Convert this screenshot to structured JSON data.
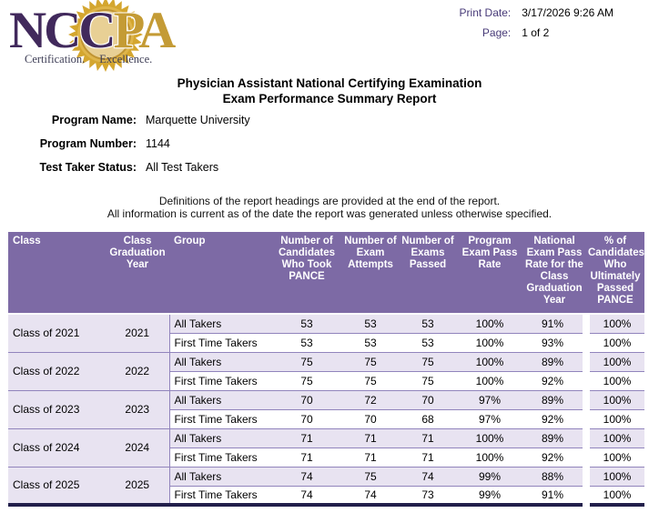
{
  "logo": {
    "ncc": "NCC",
    "pa": "PA",
    "certification": "Certification.",
    "excellence": "Excellence.",
    "purple": "#41295c",
    "gold": "#c49b35"
  },
  "print_info": {
    "print_date_label": "Print Date:",
    "print_date_value": "3/17/2026 9:26 AM",
    "page_label": "Page:",
    "page_value": "1 of 2"
  },
  "title": {
    "line1": "Physician Assistant National Certifying Examination",
    "line2": "Exam Performance Summary Report"
  },
  "program_info": {
    "name_label": "Program Name:",
    "name_value": "Marquette University",
    "number_label": "Program Number:",
    "number_value": "1144",
    "status_label": "Test Taker Status:",
    "status_value": "All Test Takers"
  },
  "notes": {
    "line1": "Definitions of the report headings are provided at the end of the report.",
    "line2": "All information is current as of the date the report was generated unless otherwise specified."
  },
  "table": {
    "columns": [
      "Class",
      "Class Graduation Year",
      "Group",
      "Number of Candidates Who Took PANCE",
      "Number of Exam Attempts",
      "Number of Exams Passed",
      "Program Exam Pass Rate",
      "National Exam Pass Rate for the Class Graduation Year",
      "% of Candidates Who Ultimately Passed PANCE"
    ],
    "groups": [
      {
        "class": "Class of 2021",
        "year": "2021",
        "rows": [
          {
            "group": "All Takers",
            "candidates": "53",
            "attempts": "53",
            "passed": "53",
            "program_rate": "100%",
            "national_rate": "91%",
            "ultimate_rate": "100%"
          },
          {
            "group": "First Time Takers",
            "candidates": "53",
            "attempts": "53",
            "passed": "53",
            "program_rate": "100%",
            "national_rate": "93%",
            "ultimate_rate": "100%"
          }
        ]
      },
      {
        "class": "Class of 2022",
        "year": "2022",
        "rows": [
          {
            "group": "All Takers",
            "candidates": "75",
            "attempts": "75",
            "passed": "75",
            "program_rate": "100%",
            "national_rate": "89%",
            "ultimate_rate": "100%"
          },
          {
            "group": "First Time Takers",
            "candidates": "75",
            "attempts": "75",
            "passed": "75",
            "program_rate": "100%",
            "national_rate": "92%",
            "ultimate_rate": "100%"
          }
        ]
      },
      {
        "class": "Class of 2023",
        "year": "2023",
        "rows": [
          {
            "group": "All Takers",
            "candidates": "70",
            "attempts": "72",
            "passed": "70",
            "program_rate": "97%",
            "national_rate": "89%",
            "ultimate_rate": "100%"
          },
          {
            "group": "First Time Takers",
            "candidates": "70",
            "attempts": "70",
            "passed": "68",
            "program_rate": "97%",
            "national_rate": "92%",
            "ultimate_rate": "100%"
          }
        ]
      },
      {
        "class": "Class of 2024",
        "year": "2024",
        "rows": [
          {
            "group": "All Takers",
            "candidates": "71",
            "attempts": "71",
            "passed": "71",
            "program_rate": "100%",
            "national_rate": "89%",
            "ultimate_rate": "100%"
          },
          {
            "group": "First Time Takers",
            "candidates": "71",
            "attempts": "71",
            "passed": "71",
            "program_rate": "100%",
            "national_rate": "92%",
            "ultimate_rate": "100%"
          }
        ]
      },
      {
        "class": "Class of 2025",
        "year": "2025",
        "rows": [
          {
            "group": "All Takers",
            "candidates": "74",
            "attempts": "75",
            "passed": "74",
            "program_rate": "99%",
            "national_rate": "88%",
            "ultimate_rate": "100%"
          },
          {
            "group": "First Time Takers",
            "candidates": "74",
            "attempts": "74",
            "passed": "73",
            "program_rate": "99%",
            "national_rate": "91%",
            "ultimate_rate": "100%"
          }
        ]
      }
    ],
    "colors": {
      "header_bg": "#7d6aa5",
      "row_alt_bg": "#e8e3f1",
      "ultimate_col_bg": "#b6aacf",
      "row_border": "#9184bc",
      "bottom_border": "#221f4b"
    }
  }
}
